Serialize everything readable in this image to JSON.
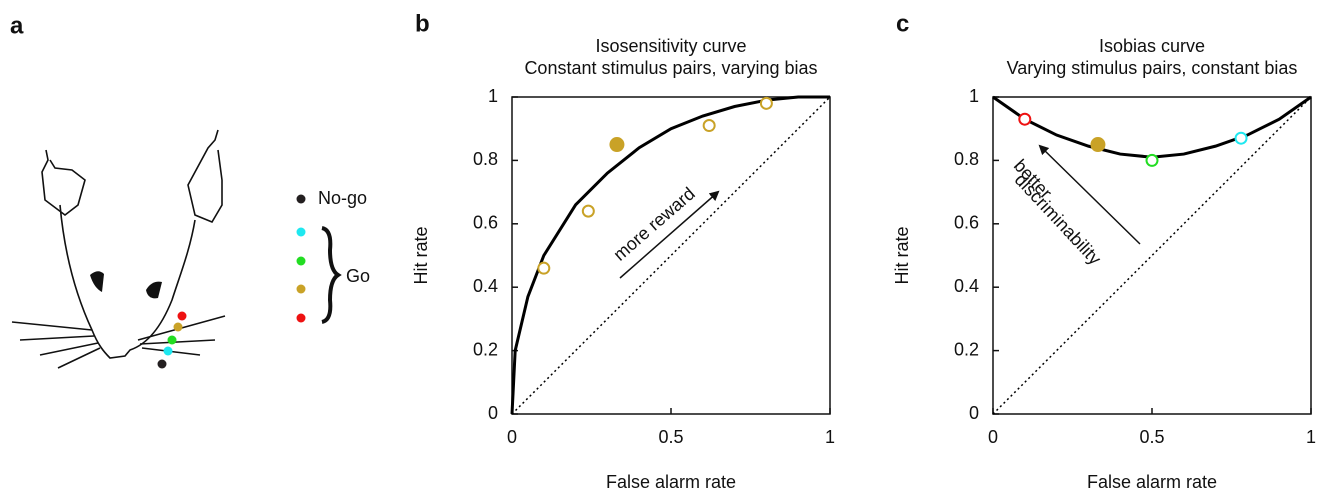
{
  "diagram": {
    "label": "a",
    "legend": [
      {
        "label": "No-go",
        "color": "#231f20"
      },
      {
        "color": "#1ee8f0"
      },
      {
        "color": "#22dd22"
      },
      {
        "color": "#c9a227"
      },
      {
        "color": "#ee1111"
      }
    ],
    "group_label": "Go"
  },
  "chart_data": [
    {
      "type": "line",
      "label": "b",
      "title": "Isosensitivity curve",
      "subtitle": "Constant stimulus pairs, varying bias",
      "x_label": "False alarm rate",
      "y_label": "Hit rate",
      "annotation": "more reward",
      "xlim": [
        0,
        1
      ],
      "ylim": [
        0,
        1
      ],
      "xticks": [
        0,
        0.5,
        1
      ],
      "yticks": [
        0,
        0.2,
        0.4,
        0.6,
        0.8,
        1
      ],
      "series": [
        {
          "style": "solid",
          "color": "#000000",
          "x": [
            0,
            0.01,
            0.05,
            0.1,
            0.2,
            0.3,
            0.4,
            0.5,
            0.6,
            0.7,
            0.8,
            0.9,
            1
          ],
          "values": [
            0,
            0.2,
            0.37,
            0.5,
            0.66,
            0.76,
            0.84,
            0.9,
            0.94,
            0.97,
            0.99,
            1,
            1
          ]
        },
        {
          "style": "dotted",
          "color": "#000000",
          "x": [
            0,
            1
          ],
          "values": [
            0,
            1
          ]
        }
      ],
      "points": {
        "x": [
          0.1,
          0.24,
          0.33,
          0.62,
          0.8
        ],
        "values": [
          0.46,
          0.64,
          0.85,
          0.91,
          0.98
        ],
        "colors": [
          "#c9a227",
          "#c9a227",
          "#c9a227",
          "#c9a227",
          "#c9a227"
        ],
        "filled": [
          false,
          false,
          true,
          false,
          false
        ]
      }
    },
    {
      "type": "line",
      "label": "c",
      "title": "Isobias curve",
      "subtitle": "Varying stimulus pairs, constant bias",
      "x_label": "False alarm rate",
      "y_label": "Hit rate",
      "annotation": [
        "better",
        "discriminability"
      ],
      "xlim": [
        0,
        1
      ],
      "ylim": [
        0,
        1
      ],
      "xticks": [
        0,
        0.5,
        1
      ],
      "yticks": [
        0,
        0.2,
        0.4,
        0.6,
        0.8,
        1
      ],
      "series": [
        {
          "style": "solid",
          "color": "#000000",
          "x": [
            0,
            0.1,
            0.2,
            0.3,
            0.4,
            0.5,
            0.6,
            0.7,
            0.8,
            0.9,
            1
          ],
          "values": [
            1,
            0.93,
            0.88,
            0.845,
            0.82,
            0.81,
            0.82,
            0.845,
            0.88,
            0.93,
            1
          ]
        },
        {
          "style": "dotted",
          "color": "#000000",
          "x": [
            0,
            1
          ],
          "values": [
            0,
            1
          ]
        }
      ],
      "points": {
        "x": [
          0.1,
          0.33,
          0.5,
          0.78
        ],
        "values": [
          0.93,
          0.85,
          0.8,
          0.87
        ],
        "colors": [
          "#ee1111",
          "#c9a227",
          "#22dd22",
          "#1ee8f0"
        ],
        "filled": [
          false,
          true,
          false,
          false
        ]
      }
    }
  ]
}
